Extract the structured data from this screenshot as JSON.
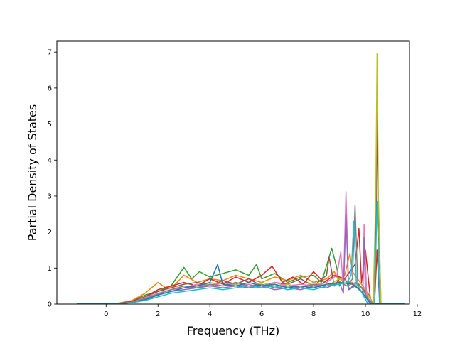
{
  "chart_data": {
    "type": "line",
    "title": "",
    "xlabel": "Frequency (THz)",
    "ylabel": "Partial Density of States",
    "xlim": [
      -1.9,
      11.7
    ],
    "ylim": [
      0,
      7.3
    ],
    "xticks": [
      0,
      2,
      4,
      6,
      8,
      10,
      12
    ],
    "yticks": [
      0,
      1,
      2,
      3,
      4,
      5,
      6,
      7
    ],
    "grid": false,
    "legend": "none",
    "colors": [
      "#1f77b4",
      "#ff7f0e",
      "#2ca02c",
      "#d62728",
      "#9467bd",
      "#8c564b",
      "#e377c2",
      "#7f7f7f",
      "#bcbd22",
      "#17becf"
    ],
    "series": [
      {
        "color": "#2ca02c",
        "x": [
          -1.1,
          0.0,
          0.5,
          1.0,
          1.5,
          2.0,
          2.5,
          3.0,
          3.3,
          3.6,
          4.0,
          4.5,
          5.0,
          5.5,
          5.8,
          6.0,
          6.5,
          7.0,
          7.5,
          8.0,
          8.3,
          8.6,
          8.7,
          8.9,
          9.0,
          9.2,
          9.4,
          9.6,
          9.8,
          10.0,
          10.2,
          10.35,
          10.45,
          10.55,
          10.8,
          11.5
        ],
        "y": [
          0,
          0,
          0.02,
          0.08,
          0.25,
          0.35,
          0.5,
          1.02,
          0.7,
          0.9,
          0.75,
          0.85,
          0.95,
          0.8,
          1.1,
          0.7,
          0.85,
          0.6,
          0.75,
          0.8,
          0.6,
          1.3,
          1.55,
          1.0,
          0.5,
          0.7,
          0.4,
          0.6,
          0.5,
          0.3,
          0,
          0,
          0,
          0,
          0,
          0
        ]
      },
      {
        "color": "#ff7f0e",
        "x": [
          -1.1,
          0.0,
          0.5,
          1.0,
          1.5,
          2.0,
          2.3,
          2.6,
          3.0,
          3.5,
          4.0,
          4.5,
          5.0,
          5.5,
          6.0,
          6.5,
          7.0,
          7.5,
          8.0,
          8.5,
          8.8,
          9.0,
          9.2,
          9.4,
          9.5,
          9.7,
          10.0,
          10.2,
          10.35,
          10.45,
          10.55,
          11.5
        ],
        "y": [
          0,
          0,
          0.03,
          0.1,
          0.3,
          0.6,
          0.45,
          0.5,
          0.8,
          0.6,
          0.7,
          0.65,
          0.8,
          0.7,
          0.6,
          0.75,
          0.65,
          0.8,
          0.6,
          0.7,
          0.9,
          0.6,
          0.8,
          1.4,
          0.9,
          0.7,
          0.4,
          0,
          0,
          0,
          0,
          0
        ]
      },
      {
        "color": "#d62728",
        "x": [
          -1.1,
          0.0,
          0.5,
          1.0,
          1.5,
          2.0,
          2.5,
          3.0,
          3.5,
          4.0,
          4.5,
          5.0,
          5.5,
          6.0,
          6.4,
          6.8,
          7.2,
          7.6,
          8.0,
          8.4,
          8.8,
          9.2,
          9.6,
          9.75,
          9.85,
          10.0,
          10.2,
          10.35,
          10.45,
          10.55,
          11.5
        ],
        "y": [
          0,
          0,
          0.02,
          0.08,
          0.2,
          0.4,
          0.5,
          0.6,
          0.5,
          0.7,
          0.55,
          0.75,
          0.6,
          0.8,
          1.05,
          0.6,
          0.75,
          0.55,
          0.9,
          0.6,
          0.8,
          0.7,
          1.1,
          2.1,
          0.6,
          1.5,
          0.1,
          0,
          1.5,
          0,
          0
        ]
      },
      {
        "color": "#8c564b",
        "x": [
          -1.1,
          0.0,
          0.5,
          1.0,
          1.5,
          2.0,
          2.5,
          3.0,
          3.5,
          4.0,
          4.5,
          5.0,
          5.5,
          6.0,
          6.5,
          7.0,
          7.5,
          8.0,
          8.5,
          8.6,
          8.8,
          9.0,
          9.4,
          9.8,
          10.1,
          10.3,
          10.42,
          10.45,
          10.5,
          10.6,
          11.5
        ],
        "y": [
          0,
          0,
          0.02,
          0.06,
          0.2,
          0.35,
          0.45,
          0.55,
          0.6,
          0.5,
          0.65,
          0.55,
          0.7,
          0.5,
          0.6,
          0.55,
          0.7,
          0.5,
          0.8,
          1.3,
          0.5,
          0.7,
          0.6,
          0.5,
          0.3,
          0,
          2.5,
          5.4,
          2.5,
          0,
          0
        ]
      },
      {
        "color": "#bcbd22",
        "x": [
          -1.1,
          0.0,
          0.5,
          1.0,
          1.5,
          2.0,
          2.5,
          3.0,
          3.5,
          4.0,
          4.5,
          5.0,
          5.5,
          6.0,
          6.5,
          7.0,
          7.5,
          8.0,
          8.5,
          9.0,
          9.5,
          10.0,
          10.3,
          10.4,
          10.45,
          10.5,
          10.6,
          11.5
        ],
        "y": [
          0,
          0,
          0.02,
          0.05,
          0.15,
          0.3,
          0.4,
          0.5,
          0.45,
          0.6,
          0.5,
          0.55,
          0.45,
          0.6,
          0.5,
          0.55,
          0.45,
          0.6,
          0.5,
          0.7,
          0.6,
          0.4,
          0,
          3.0,
          6.95,
          3.0,
          0,
          0
        ]
      },
      {
        "color": "#e377c2",
        "x": [
          -1.1,
          0.0,
          0.5,
          1.0,
          1.5,
          2.0,
          2.5,
          3.0,
          3.5,
          4.0,
          4.5,
          5.0,
          5.5,
          6.0,
          6.5,
          7.0,
          7.5,
          8.0,
          8.5,
          8.9,
          9.05,
          9.15,
          9.25,
          9.35,
          9.5,
          9.9,
          9.95,
          10.05,
          10.3,
          10.45,
          10.6,
          11.5
        ],
        "y": [
          0,
          0,
          0.02,
          0.05,
          0.18,
          0.3,
          0.4,
          0.45,
          0.55,
          0.5,
          0.6,
          0.5,
          0.55,
          0.45,
          0.6,
          0.5,
          0.55,
          0.5,
          0.6,
          0.8,
          1.45,
          0.4,
          3.12,
          0.5,
          0.6,
          0.3,
          2.2,
          0.2,
          0,
          0,
          0,
          0
        ]
      },
      {
        "color": "#9467bd",
        "x": [
          -1.1,
          0.0,
          0.5,
          1.0,
          1.5,
          2.0,
          2.5,
          3.0,
          3.5,
          4.0,
          4.5,
          5.0,
          5.5,
          6.0,
          6.5,
          7.0,
          7.5,
          8.0,
          8.5,
          9.0,
          9.15,
          9.25,
          9.35,
          9.6,
          9.9,
          9.95,
          10.0,
          10.3,
          10.45,
          10.6,
          11.5
        ],
        "y": [
          0,
          0,
          0.02,
          0.04,
          0.12,
          0.25,
          0.35,
          0.4,
          0.45,
          0.5,
          0.45,
          0.5,
          0.45,
          0.5,
          0.4,
          0.45,
          0.4,
          0.5,
          0.45,
          0.6,
          0.3,
          2.5,
          0.4,
          0.5,
          0.3,
          1.85,
          0.2,
          0,
          0,
          0,
          0
        ]
      },
      {
        "color": "#7f7f7f",
        "x": [
          -1.1,
          0.0,
          0.5,
          1.0,
          1.5,
          2.0,
          2.5,
          3.0,
          3.5,
          4.0,
          4.5,
          5.0,
          5.5,
          6.0,
          6.5,
          7.0,
          7.5,
          8.0,
          8.5,
          9.0,
          9.3,
          9.5,
          9.6,
          9.7,
          9.9,
          10.2,
          10.45,
          11.5
        ],
        "y": [
          0,
          0,
          0.02,
          0.05,
          0.15,
          0.28,
          0.4,
          0.5,
          0.45,
          0.55,
          0.5,
          0.6,
          0.5,
          0.55,
          0.45,
          0.5,
          0.45,
          0.55,
          0.5,
          0.6,
          0.5,
          0.7,
          2.75,
          0.6,
          0.4,
          0,
          0,
          0
        ]
      },
      {
        "color": "#1f77b4",
        "x": [
          -1.1,
          0.0,
          0.5,
          1.0,
          1.5,
          2.0,
          2.5,
          3.0,
          3.5,
          4.0,
          4.3,
          4.5,
          5.0,
          5.5,
          6.0,
          6.5,
          7.0,
          7.5,
          8.0,
          8.5,
          9.0,
          9.5,
          9.8,
          10.0,
          10.2,
          10.45,
          11.5
        ],
        "y": [
          0,
          0,
          0.02,
          0.04,
          0.12,
          0.25,
          0.35,
          0.45,
          0.5,
          0.6,
          1.1,
          0.55,
          0.5,
          0.6,
          0.5,
          0.55,
          0.45,
          0.5,
          0.45,
          0.55,
          0.6,
          0.55,
          0.4,
          0.2,
          0,
          0,
          0
        ]
      },
      {
        "color": "#17becf",
        "x": [
          -1.1,
          0.0,
          0.5,
          1.0,
          1.5,
          2.0,
          2.5,
          3.0,
          3.5,
          4.0,
          4.5,
          5.0,
          5.5,
          6.0,
          6.5,
          7.0,
          7.5,
          8.0,
          8.5,
          9.0,
          9.3,
          9.45,
          9.55,
          9.65,
          9.8,
          10.1,
          10.35,
          10.45,
          10.55,
          10.8,
          11.5
        ],
        "y": [
          0,
          0,
          0.02,
          0.04,
          0.1,
          0.2,
          0.3,
          0.35,
          0.4,
          0.45,
          0.4,
          0.45,
          0.5,
          0.45,
          0.5,
          0.4,
          0.45,
          0.4,
          0.5,
          0.55,
          0.6,
          0.8,
          2.3,
          0.6,
          0.4,
          0,
          0,
          2.85,
          0,
          0,
          0
        ]
      }
    ]
  }
}
